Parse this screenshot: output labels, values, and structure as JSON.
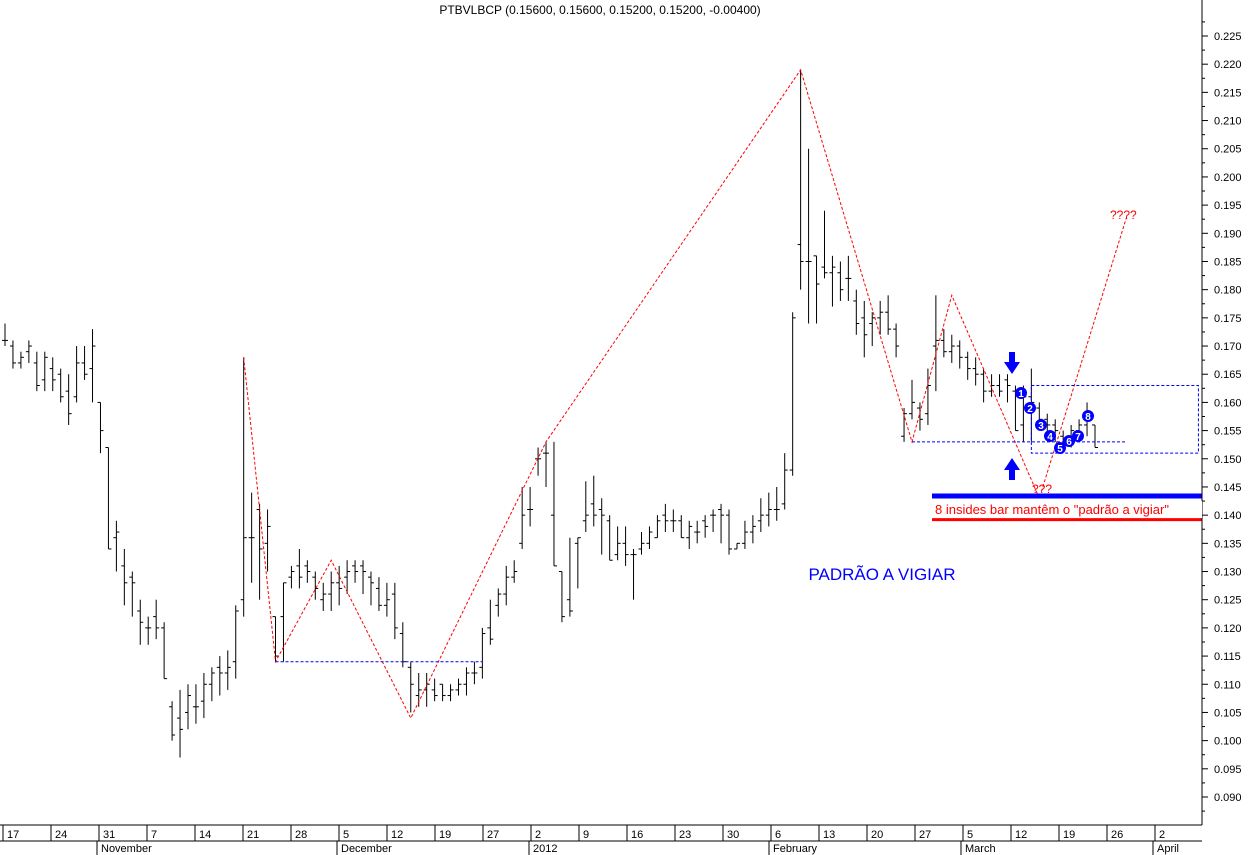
{
  "header": {
    "title": "PTBVLBCP (0.15600, 0.15600, 0.15200, 0.15200, -0.00400)"
  },
  "annotations": {
    "pattern_label": "PADRÃO A VIGIAR",
    "insides_note": "8 insides bar mantêm o \"padrão a vigiar\"",
    "target_up": "????",
    "target_low": "???",
    "inside_bar_numbers": [
      "1",
      "2",
      "3",
      "4",
      "5",
      "6",
      "7",
      "8"
    ]
  },
  "colors": {
    "bars": "#000000",
    "zigzag": "#ff0000",
    "box": "#0000ff",
    "label_blue": "#0000ff",
    "note_red": "#ff0000",
    "support_line": "#0000ff",
    "resistance_line": "#ff0000",
    "marker_fill": "#0000ff",
    "marker_text": "#ffffff",
    "arrow": "#0000ff"
  },
  "icons": {
    "down_arrow": "arrow-down-icon",
    "up_arrow": "arrow-up-icon"
  },
  "chart_data": {
    "type": "ohlc",
    "title": "PTBVLBCP (0.15600, 0.15600, 0.15200, 0.15200, -0.00400)",
    "ylim": [
      0.085,
      0.229
    ],
    "y_ticks": [
      0.09,
      0.095,
      0.1,
      0.105,
      0.11,
      0.115,
      0.12,
      0.125,
      0.13,
      0.135,
      0.14,
      0.145,
      0.15,
      0.155,
      0.16,
      0.165,
      0.17,
      0.175,
      0.18,
      0.185,
      0.19,
      0.195,
      0.2,
      0.205,
      0.21,
      0.215,
      0.22,
      0.225
    ],
    "y_tick_labels": [
      "0.090",
      "0.095",
      "0.100",
      "0.105",
      "0.110",
      "0.115",
      "0.120",
      "0.125",
      "0.130",
      "0.135",
      "0.140",
      "0.145",
      "0.150",
      "0.155",
      "0.160",
      "0.165",
      "0.170",
      "0.175",
      "0.180",
      "0.185",
      "0.190",
      "0.195",
      "0.200",
      "0.205",
      "0.210",
      "0.215",
      "0.220",
      "0.225"
    ],
    "x_day_labels": [
      "17",
      "24",
      "31",
      "7",
      "14",
      "21",
      "28",
      "5",
      "12",
      "19",
      "27",
      "2",
      "9",
      "16",
      "23",
      "30",
      "6",
      "13",
      "20",
      "27",
      "5",
      "12",
      "19",
      "26",
      "2"
    ],
    "x_month_labels": [
      "November",
      "December",
      "2012",
      "February",
      "March",
      "April"
    ],
    "series": [
      {
        "name": "PTBVLBCP",
        "bars": [
          {
            "o": 0.171,
            "h": 0.174,
            "l": 0.17,
            "c": 0.171
          },
          {
            "o": 0.17,
            "h": 0.171,
            "l": 0.166,
            "c": 0.167
          },
          {
            "o": 0.167,
            "h": 0.169,
            "l": 0.166,
            "c": 0.168
          },
          {
            "o": 0.169,
            "h": 0.171,
            "l": 0.167,
            "c": 0.17
          },
          {
            "o": 0.167,
            "h": 0.169,
            "l": 0.162,
            "c": 0.163
          },
          {
            "o": 0.164,
            "h": 0.169,
            "l": 0.162,
            "c": 0.168
          },
          {
            "o": 0.166,
            "h": 0.168,
            "l": 0.162,
            "c": 0.164
          },
          {
            "o": 0.165,
            "h": 0.166,
            "l": 0.16,
            "c": 0.161
          },
          {
            "o": 0.162,
            "h": 0.165,
            "l": 0.156,
            "c": 0.158
          },
          {
            "o": 0.161,
            "h": 0.17,
            "l": 0.16,
            "c": 0.167
          },
          {
            "o": 0.167,
            "h": 0.17,
            "l": 0.164,
            "c": 0.165
          },
          {
            "o": 0.166,
            "h": 0.173,
            "l": 0.16,
            "c": 0.17
          },
          {
            "o": 0.16,
            "h": 0.16,
            "l": 0.151,
            "c": 0.155
          },
          {
            "o": 0.152,
            "h": 0.152,
            "l": 0.134,
            "c": 0.134
          },
          {
            "o": 0.136,
            "h": 0.139,
            "l": 0.13,
            "c": 0.137
          },
          {
            "o": 0.131,
            "h": 0.134,
            "l": 0.124,
            "c": 0.128
          },
          {
            "o": 0.129,
            "h": 0.13,
            "l": 0.122,
            "c": 0.128
          },
          {
            "o": 0.123,
            "h": 0.125,
            "l": 0.117,
            "c": 0.121
          },
          {
            "o": 0.12,
            "h": 0.122,
            "l": 0.117,
            "c": 0.12
          },
          {
            "o": 0.122,
            "h": 0.125,
            "l": 0.118,
            "c": 0.12
          },
          {
            "o": 0.12,
            "h": 0.121,
            "l": 0.111,
            "c": 0.111
          },
          {
            "o": 0.106,
            "h": 0.107,
            "l": 0.1,
            "c": 0.101
          },
          {
            "o": 0.104,
            "h": 0.109,
            "l": 0.097,
            "c": 0.102
          },
          {
            "o": 0.105,
            "h": 0.11,
            "l": 0.102,
            "c": 0.108
          },
          {
            "o": 0.106,
            "h": 0.11,
            "l": 0.103,
            "c": 0.106
          },
          {
            "o": 0.107,
            "h": 0.112,
            "l": 0.104,
            "c": 0.11
          },
          {
            "o": 0.11,
            "h": 0.113,
            "l": 0.107,
            "c": 0.112
          },
          {
            "o": 0.113,
            "h": 0.115,
            "l": 0.108,
            "c": 0.112
          },
          {
            "o": 0.112,
            "h": 0.116,
            "l": 0.109,
            "c": 0.113
          },
          {
            "o": 0.114,
            "h": 0.124,
            "l": 0.111,
            "c": 0.123
          },
          {
            "o": 0.125,
            "h": 0.168,
            "l": 0.122,
            "c": 0.136
          },
          {
            "o": 0.136,
            "h": 0.144,
            "l": 0.128,
            "c": 0.136
          },
          {
            "o": 0.141,
            "h": 0.142,
            "l": 0.125,
            "c": 0.134
          },
          {
            "o": 0.135,
            "h": 0.141,
            "l": 0.13,
            "c": 0.138
          },
          {
            "o": 0.122,
            "h": 0.122,
            "l": 0.114,
            "c": 0.115
          },
          {
            "o": 0.122,
            "h": 0.128,
            "l": 0.114,
            "c": 0.128
          },
          {
            "o": 0.129,
            "h": 0.131,
            "l": 0.127,
            "c": 0.13
          },
          {
            "o": 0.131,
            "h": 0.134,
            "l": 0.127,
            "c": 0.129
          },
          {
            "o": 0.131,
            "h": 0.132,
            "l": 0.128,
            "c": 0.13
          },
          {
            "o": 0.129,
            "h": 0.13,
            "l": 0.125,
            "c": 0.127
          },
          {
            "o": 0.125,
            "h": 0.128,
            "l": 0.123,
            "c": 0.126
          },
          {
            "o": 0.126,
            "h": 0.13,
            "l": 0.123,
            "c": 0.128
          },
          {
            "o": 0.128,
            "h": 0.131,
            "l": 0.124,
            "c": 0.127
          },
          {
            "o": 0.129,
            "h": 0.132,
            "l": 0.126,
            "c": 0.13
          },
          {
            "o": 0.131,
            "h": 0.132,
            "l": 0.128,
            "c": 0.13
          },
          {
            "o": 0.131,
            "h": 0.132,
            "l": 0.126,
            "c": 0.13
          },
          {
            "o": 0.129,
            "h": 0.13,
            "l": 0.124,
            "c": 0.128
          },
          {
            "o": 0.127,
            "h": 0.129,
            "l": 0.123,
            "c": 0.124
          },
          {
            "o": 0.124,
            "h": 0.128,
            "l": 0.122,
            "c": 0.125
          },
          {
            "o": 0.126,
            "h": 0.128,
            "l": 0.118,
            "c": 0.12
          },
          {
            "o": 0.119,
            "h": 0.121,
            "l": 0.113,
            "c": 0.114
          },
          {
            "o": 0.113,
            "h": 0.114,
            "l": 0.105,
            "c": 0.11
          },
          {
            "o": 0.108,
            "h": 0.112,
            "l": 0.106,
            "c": 0.109
          },
          {
            "o": 0.109,
            "h": 0.112,
            "l": 0.106,
            "c": 0.11
          },
          {
            "o": 0.109,
            "h": 0.111,
            "l": 0.107,
            "c": 0.108
          },
          {
            "o": 0.11,
            "h": 0.11,
            "l": 0.107,
            "c": 0.108
          },
          {
            "o": 0.108,
            "h": 0.11,
            "l": 0.107,
            "c": 0.109
          },
          {
            "o": 0.109,
            "h": 0.111,
            "l": 0.108,
            "c": 0.11
          },
          {
            "o": 0.11,
            "h": 0.113,
            "l": 0.108,
            "c": 0.112
          },
          {
            "o": 0.112,
            "h": 0.114,
            "l": 0.11,
            "c": 0.112
          },
          {
            "o": 0.113,
            "h": 0.12,
            "l": 0.111,
            "c": 0.119
          },
          {
            "o": 0.12,
            "h": 0.125,
            "l": 0.117,
            "c": 0.118
          },
          {
            "o": 0.124,
            "h": 0.127,
            "l": 0.122,
            "c": 0.126
          },
          {
            "o": 0.126,
            "h": 0.131,
            "l": 0.124,
            "c": 0.129
          },
          {
            "o": 0.129,
            "h": 0.132,
            "l": 0.128,
            "c": 0.13
          },
          {
            "o": 0.135,
            "h": 0.145,
            "l": 0.134,
            "c": 0.14
          },
          {
            "o": 0.141,
            "h": 0.145,
            "l": 0.138,
            "c": 0.141
          },
          {
            "o": 0.15,
            "h": 0.152,
            "l": 0.147,
            "c": 0.15
          },
          {
            "o": 0.151,
            "h": 0.153,
            "l": 0.145,
            "c": 0.151
          },
          {
            "o": 0.14,
            "h": 0.153,
            "l": 0.131,
            "c": 0.131
          },
          {
            "o": 0.13,
            "h": 0.13,
            "l": 0.121,
            "c": 0.122
          },
          {
            "o": 0.125,
            "h": 0.136,
            "l": 0.122,
            "c": 0.123
          },
          {
            "o": 0.135,
            "h": 0.136,
            "l": 0.127,
            "c": 0.136
          },
          {
            "o": 0.139,
            "h": 0.146,
            "l": 0.137,
            "c": 0.14
          },
          {
            "o": 0.142,
            "h": 0.147,
            "l": 0.138,
            "c": 0.14
          },
          {
            "o": 0.141,
            "h": 0.143,
            "l": 0.133,
            "c": 0.14
          },
          {
            "o": 0.139,
            "h": 0.14,
            "l": 0.132,
            "c": 0.132
          },
          {
            "o": 0.133,
            "h": 0.138,
            "l": 0.132,
            "c": 0.135
          },
          {
            "o": 0.135,
            "h": 0.138,
            "l": 0.131,
            "c": 0.133
          },
          {
            "o": 0.133,
            "h": 0.134,
            "l": 0.125,
            "c": 0.133
          },
          {
            "o": 0.134,
            "h": 0.137,
            "l": 0.133,
            "c": 0.135
          },
          {
            "o": 0.135,
            "h": 0.138,
            "l": 0.134,
            "c": 0.137
          },
          {
            "o": 0.136,
            "h": 0.14,
            "l": 0.136,
            "c": 0.139
          },
          {
            "o": 0.14,
            "h": 0.142,
            "l": 0.137,
            "c": 0.139
          },
          {
            "o": 0.139,
            "h": 0.141,
            "l": 0.137,
            "c": 0.139
          },
          {
            "o": 0.139,
            "h": 0.14,
            "l": 0.136,
            "c": 0.136
          },
          {
            "o": 0.136,
            "h": 0.139,
            "l": 0.134,
            "c": 0.138
          },
          {
            "o": 0.137,
            "h": 0.139,
            "l": 0.135,
            "c": 0.137
          },
          {
            "o": 0.139,
            "h": 0.14,
            "l": 0.136,
            "c": 0.138
          },
          {
            "o": 0.14,
            "h": 0.141,
            "l": 0.137,
            "c": 0.14
          },
          {
            "o": 0.141,
            "h": 0.142,
            "l": 0.135,
            "c": 0.14
          },
          {
            "o": 0.14,
            "h": 0.141,
            "l": 0.133,
            "c": 0.134
          },
          {
            "o": 0.134,
            "h": 0.135,
            "l": 0.134,
            "c": 0.135
          },
          {
            "o": 0.135,
            "h": 0.139,
            "l": 0.134,
            "c": 0.137
          },
          {
            "o": 0.137,
            "h": 0.14,
            "l": 0.135,
            "c": 0.138
          },
          {
            "o": 0.139,
            "h": 0.143,
            "l": 0.137,
            "c": 0.14
          },
          {
            "o": 0.14,
            "h": 0.144,
            "l": 0.138,
            "c": 0.141
          },
          {
            "o": 0.141,
            "h": 0.145,
            "l": 0.139,
            "c": 0.141
          },
          {
            "o": 0.142,
            "h": 0.151,
            "l": 0.141,
            "c": 0.148
          },
          {
            "o": 0.148,
            "h": 0.176,
            "l": 0.147,
            "c": 0.175
          },
          {
            "o": 0.188,
            "h": 0.219,
            "l": 0.18,
            "c": 0.185
          },
          {
            "o": 0.185,
            "h": 0.205,
            "l": 0.174,
            "c": 0.185
          },
          {
            "o": 0.186,
            "h": 0.186,
            "l": 0.174,
            "c": 0.181
          },
          {
            "o": 0.184,
            "h": 0.194,
            "l": 0.182,
            "c": 0.183
          },
          {
            "o": 0.183,
            "h": 0.186,
            "l": 0.177,
            "c": 0.184
          },
          {
            "o": 0.183,
            "h": 0.185,
            "l": 0.178,
            "c": 0.18
          },
          {
            "o": 0.182,
            "h": 0.186,
            "l": 0.178,
            "c": 0.182
          },
          {
            "o": 0.178,
            "h": 0.18,
            "l": 0.172,
            "c": 0.174
          },
          {
            "o": 0.175,
            "h": 0.178,
            "l": 0.168,
            "c": 0.172
          },
          {
            "o": 0.174,
            "h": 0.176,
            "l": 0.17,
            "c": 0.175
          },
          {
            "o": 0.175,
            "h": 0.178,
            "l": 0.172,
            "c": 0.176
          },
          {
            "o": 0.176,
            "h": 0.179,
            "l": 0.172,
            "c": 0.173
          },
          {
            "o": 0.173,
            "h": 0.174,
            "l": 0.168,
            "c": 0.17
          },
          {
            "o": 0.154,
            "h": 0.159,
            "l": 0.153,
            "c": 0.158
          },
          {
            "o": 0.158,
            "h": 0.164,
            "l": 0.157,
            "c": 0.16
          },
          {
            "o": 0.159,
            "h": 0.16,
            "l": 0.155,
            "c": 0.157
          },
          {
            "o": 0.158,
            "h": 0.166,
            "l": 0.156,
            "c": 0.163
          },
          {
            "o": 0.17,
            "h": 0.179,
            "l": 0.162,
            "c": 0.171
          },
          {
            "o": 0.171,
            "h": 0.173,
            "l": 0.168,
            "c": 0.169
          },
          {
            "o": 0.169,
            "h": 0.172,
            "l": 0.167,
            "c": 0.17
          },
          {
            "o": 0.17,
            "h": 0.171,
            "l": 0.166,
            "c": 0.168
          },
          {
            "o": 0.168,
            "h": 0.169,
            "l": 0.164,
            "c": 0.166
          },
          {
            "o": 0.166,
            "h": 0.168,
            "l": 0.163,
            "c": 0.165
          },
          {
            "o": 0.165,
            "h": 0.166,
            "l": 0.16,
            "c": 0.162
          },
          {
            "o": 0.162,
            "h": 0.165,
            "l": 0.161,
            "c": 0.163
          },
          {
            "o": 0.163,
            "h": 0.165,
            "l": 0.161,
            "c": 0.162
          },
          {
            "o": 0.164,
            "h": 0.165,
            "l": 0.16,
            "c": 0.163
          },
          {
            "o": 0.162,
            "h": 0.163,
            "l": 0.155,
            "c": 0.155
          },
          {
            "o": 0.156,
            "h": 0.163,
            "l": 0.153,
            "c": 0.161
          },
          {
            "o": 0.161,
            "h": 0.166,
            "l": 0.153,
            "c": 0.16
          },
          {
            "o": 0.159,
            "h": 0.16,
            "l": 0.155,
            "c": 0.157
          },
          {
            "o": 0.157,
            "h": 0.158,
            "l": 0.154,
            "c": 0.156
          },
          {
            "o": 0.156,
            "h": 0.157,
            "l": 0.153,
            "c": 0.155
          },
          {
            "o": 0.154,
            "h": 0.155,
            "l": 0.152,
            "c": 0.153
          },
          {
            "o": 0.153,
            "h": 0.156,
            "l": 0.152,
            "c": 0.155
          },
          {
            "o": 0.155,
            "h": 0.157,
            "l": 0.153,
            "c": 0.156
          },
          {
            "o": 0.156,
            "h": 0.16,
            "l": 0.154,
            "c": 0.158
          },
          {
            "o": 0.156,
            "h": 0.156,
            "l": 0.152,
            "c": 0.152
          }
        ]
      }
    ],
    "zigzag_points": [
      {
        "bar": 30,
        "price": 0.168
      },
      {
        "bar": 34,
        "price": 0.114
      },
      {
        "bar": 41,
        "price": 0.132
      },
      {
        "bar": 51,
        "price": 0.104
      },
      {
        "bar": 68,
        "price": 0.153
      },
      {
        "bar": 100,
        "price": 0.219
      },
      {
        "bar": 114,
        "price": 0.153
      },
      {
        "bar": 119,
        "price": 0.179
      },
      {
        "bar": 130,
        "price": 0.143
      },
      {
        "bar": 141,
        "price": 0.193
      }
    ],
    "horizontal_levels": [
      {
        "label": "december_base",
        "from_bar": 34,
        "to_bar": 60,
        "price": 0.114
      },
      {
        "label": "pattern_base",
        "from_bar": 114,
        "to_bar": 141,
        "price": 0.153
      }
    ],
    "pattern_box": {
      "from_bar": 129,
      "to_bar": 150,
      "top": 0.163,
      "bottom": 0.151
    },
    "support_line": {
      "price": 0.1434
    },
    "resistance_line": {
      "price": 0.1392
    }
  }
}
